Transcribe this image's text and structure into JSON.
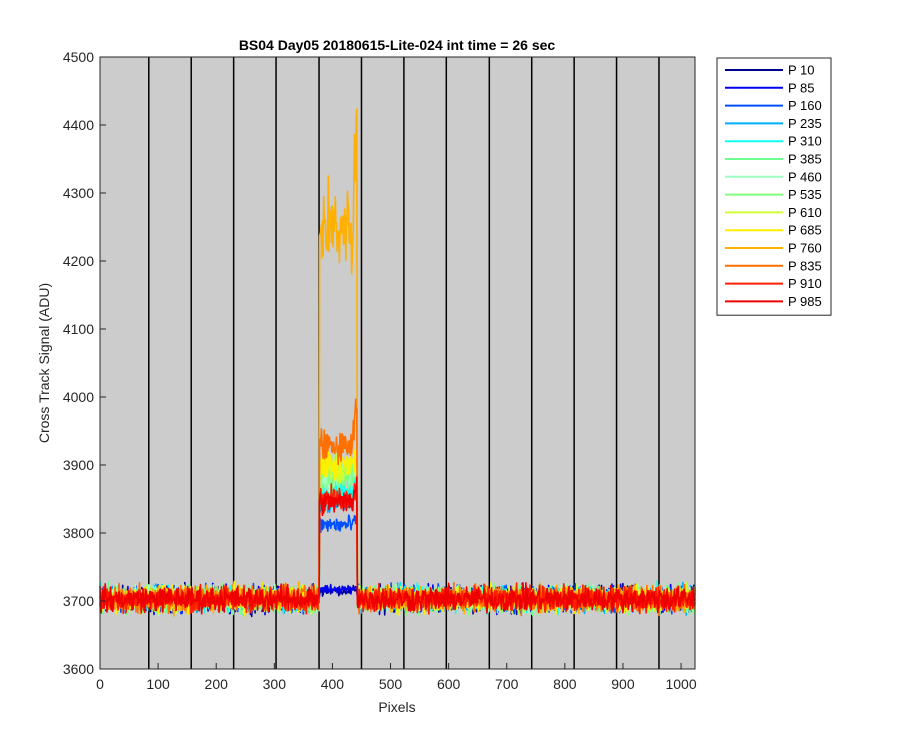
{
  "chart_data": {
    "type": "line",
    "title": "BS04 Day05 20180615-Lite-024 int time = 26 sec",
    "xlabel": "Pixels",
    "ylabel": "Cross Track Signal (ADU)",
    "xlim": [
      0,
      1024
    ],
    "ylim": [
      3600,
      4500
    ],
    "xticks": [
      0,
      100,
      200,
      300,
      400,
      500,
      600,
      700,
      800,
      900,
      1000
    ],
    "yticks": [
      3600,
      3700,
      3800,
      3900,
      4000,
      4100,
      4200,
      4300,
      4400,
      4500
    ],
    "background_color": "#cccccc",
    "vertical_markers_x": [
      84,
      157,
      230,
      303,
      377,
      450,
      523,
      596,
      670,
      743,
      816,
      889,
      962
    ],
    "legend_position": "outside-top-right",
    "series": [
      {
        "name": "P 10",
        "color": "#00008f",
        "baseline": 3703,
        "spike_x": [
          378,
          442
        ],
        "spike_level": 3715,
        "spike_end": 3718
      },
      {
        "name": "P 85",
        "color": "#0000ef",
        "baseline": 3703,
        "spike_x": [
          378,
          442
        ],
        "spike_level": 3718,
        "spike_end": 3722
      },
      {
        "name": "P 160",
        "color": "#0050ff",
        "baseline": 3703,
        "spike_x": [
          378,
          442
        ],
        "spike_level": 3812,
        "spike_end": 3820
      },
      {
        "name": "P 235",
        "color": "#00afff",
        "baseline": 3703,
        "spike_x": [
          378,
          442
        ],
        "spike_level": 3845,
        "spike_end": 3860
      },
      {
        "name": "P 310",
        "color": "#10ffef",
        "baseline": 3703,
        "spike_x": [
          378,
          442
        ],
        "spike_level": 3860,
        "spike_end": 3875
      },
      {
        "name": "P 385",
        "color": "#70ff8f",
        "baseline": 3703,
        "spike_x": [
          378,
          442
        ],
        "spike_level": 3880,
        "spike_end": 3900
      },
      {
        "name": "P 460",
        "color": "#9fffc0",
        "baseline": 3703,
        "spike_x": [
          378,
          442
        ],
        "spike_level": 3885,
        "spike_end": 3905
      },
      {
        "name": "P 535",
        "color": "#80ff80",
        "baseline": 3703,
        "spike_x": [
          378,
          442
        ],
        "spike_level": 3890,
        "spike_end": 3910
      },
      {
        "name": "P 610",
        "color": "#cfff30",
        "baseline": 3703,
        "spike_x": [
          378,
          442
        ],
        "spike_level": 3895,
        "spike_end": 3915
      },
      {
        "name": "P 685",
        "color": "#ffef00",
        "baseline": 3703,
        "spike_x": [
          378,
          442
        ],
        "spike_level": 3900,
        "spike_end": 3920
      },
      {
        "name": "P 760",
        "color": "#ffb000",
        "baseline": 3703,
        "spike_x": [
          378,
          442
        ],
        "spike_level": 4250,
        "spike_end": 4400
      },
      {
        "name": "P 835",
        "color": "#ff7000",
        "baseline": 3703,
        "spike_x": [
          378,
          442
        ],
        "spike_level": 3930,
        "spike_end": 4000
      },
      {
        "name": "P 910",
        "color": "#ff2000",
        "baseline": 3703,
        "spike_x": [
          378,
          442
        ],
        "spike_level": 3850,
        "spike_end": 3870
      },
      {
        "name": "P 985",
        "color": "#ef0000",
        "baseline": 3703,
        "spike_x": [
          378,
          442
        ],
        "spike_level": 3845,
        "spike_end": 3880
      }
    ]
  }
}
